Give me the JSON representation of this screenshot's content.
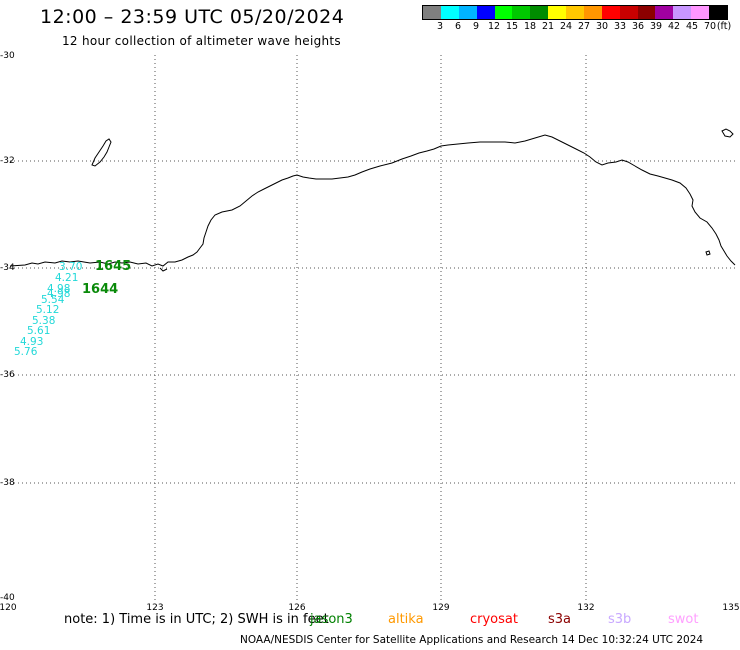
{
  "header": {
    "title": "12:00 – 23:59 UTC 05/20/2024",
    "subtitle": "12 hour collection of altimeter wave heights"
  },
  "legend": {
    "colors": [
      "#7f7f7f",
      "#00ffff",
      "#00b4ff",
      "#0000ff",
      "#00ff00",
      "#00c800",
      "#008c00",
      "#ffff00",
      "#ffc800",
      "#ff9600",
      "#ff0000",
      "#c80000",
      "#8c0000",
      "#a000a0",
      "#c896ff",
      "#ff96ff",
      "#000000"
    ],
    "labels": [
      "3",
      "6",
      "9",
      "12",
      "15",
      "18",
      "21",
      "24",
      "27",
      "30",
      "33",
      "36",
      "39",
      "42",
      "45",
      "70",
      "(ft)"
    ]
  },
  "axes": {
    "y_labels": [
      "-30",
      "-32",
      "-34",
      "-36",
      "-38",
      "-40"
    ],
    "x_labels": [
      "120",
      "123",
      "126",
      "129",
      "132",
      "135"
    ]
  },
  "swh_values": [
    "3.70",
    "4.21",
    "4.98",
    "4.98",
    "5.54",
    "5.12",
    "5.38",
    "5.61",
    "4.93",
    "5.76"
  ],
  "time_labels": [
    "1645",
    "1644"
  ],
  "note": {
    "text": "note: 1) Time is in UTC; 2) SWH is in feet"
  },
  "satellites": [
    {
      "name": "jason3",
      "color": "#008000"
    },
    {
      "name": "altika",
      "color": "#ff9900"
    },
    {
      "name": "cryosat",
      "color": "#ff0000"
    },
    {
      "name": "s3a",
      "color": "#8b0000"
    },
    {
      "name": "s3b",
      "color": "#c8a8ff"
    },
    {
      "name": "swot",
      "color": "#ffa0ff"
    }
  ],
  "footer": {
    "text": "NOAA/NESDIS Center for Satellite Applications and Research    14 Dec 10:32:24 UTC 2024"
  }
}
